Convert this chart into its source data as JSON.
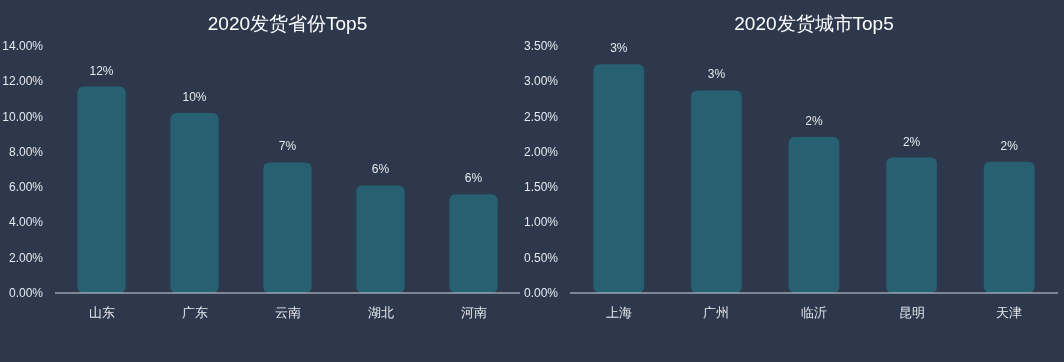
{
  "chart_data": [
    {
      "type": "bar",
      "title": "2020发货省份Top5",
      "categories": [
        "山东",
        "广东",
        "云南",
        "湖北",
        "河南"
      ],
      "values": [
        11.7,
        10.2,
        7.4,
        6.1,
        5.6
      ],
      "value_labels": [
        "12%",
        "10%",
        "7%",
        "6%",
        "6%"
      ],
      "color": "#276070",
      "ylim": [
        0,
        14
      ],
      "yticks": [
        {
          "value": 0,
          "label": "0.00%"
        },
        {
          "value": 2,
          "label": "2.00%"
        },
        {
          "value": 4,
          "label": "4.00%"
        },
        {
          "value": 6,
          "label": "6.00%"
        },
        {
          "value": 8,
          "label": "8.00%"
        },
        {
          "value": 10,
          "label": "10.00%"
        },
        {
          "value": 12,
          "label": "12.00%"
        },
        {
          "value": 14,
          "label": "14.00%"
        }
      ],
      "grid": false
    },
    {
      "type": "bar",
      "title": "2020发货城市Top5",
      "categories": [
        "上海",
        "广州",
        "临沂",
        "昆明",
        "天津"
      ],
      "values": [
        3.24,
        2.87,
        2.21,
        1.92,
        1.86
      ],
      "value_labels": [
        "3%",
        "3%",
        "2%",
        "2%",
        "2%"
      ],
      "color": "#276070",
      "ylim": [
        0,
        3.5
      ],
      "yticks": [
        {
          "value": 0,
          "label": "0.00%"
        },
        {
          "value": 0.5,
          "label": "0.50%"
        },
        {
          "value": 1,
          "label": "1.00%"
        },
        {
          "value": 1.5,
          "label": "1.50%"
        },
        {
          "value": 2,
          "label": "2.00%"
        },
        {
          "value": 2.5,
          "label": "2.50%"
        },
        {
          "value": 3,
          "label": "3.00%"
        },
        {
          "value": 3.5,
          "label": "3.50%"
        }
      ],
      "grid": false
    }
  ]
}
